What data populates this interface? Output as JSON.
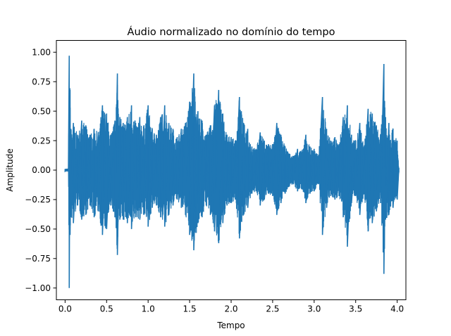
{
  "chart_data": {
    "type": "line",
    "title": "Áudio normalizado no domínio do tempo",
    "xlabel": "Tempo",
    "ylabel": "Amplitude",
    "xlim": [
      -0.105,
      4.105
    ],
    "ylim": [
      -1.1,
      1.1
    ],
    "x_ticks": [
      0.0,
      0.5,
      1.0,
      1.5,
      2.0,
      2.5,
      3.0,
      3.5,
      4.0
    ],
    "x_tick_labels": [
      "0.0",
      "0.5",
      "1.0",
      "1.5",
      "2.0",
      "2.5",
      "3.0",
      "3.5",
      "4.0"
    ],
    "y_ticks": [
      -1.0,
      -0.75,
      -0.5,
      -0.25,
      0.0,
      0.25,
      0.5,
      0.75,
      1.0
    ],
    "y_tick_labels": [
      "−1.00",
      "−0.75",
      "−0.50",
      "−0.25",
      "0.00",
      "0.25",
      "0.50",
      "0.75",
      "1.00"
    ],
    "grid": false,
    "series": [
      {
        "color": "#1f77b4",
        "envelope": {
          "x": [
            0.0,
            0.04,
            0.05,
            0.06,
            0.07,
            0.1,
            0.15,
            0.2,
            0.25,
            0.3,
            0.35,
            0.4,
            0.45,
            0.5,
            0.55,
            0.6,
            0.63,
            0.66,
            0.7,
            0.75,
            0.8,
            0.85,
            0.9,
            0.95,
            1.0,
            1.05,
            1.1,
            1.15,
            1.2,
            1.25,
            1.3,
            1.35,
            1.4,
            1.45,
            1.5,
            1.55,
            1.6,
            1.65,
            1.7,
            1.75,
            1.8,
            1.85,
            1.9,
            1.95,
            2.0,
            2.05,
            2.1,
            2.15,
            2.2,
            2.25,
            2.3,
            2.35,
            2.4,
            2.45,
            2.5,
            2.55,
            2.6,
            2.65,
            2.7,
            2.75,
            2.8,
            2.85,
            2.9,
            2.95,
            3.0,
            3.05,
            3.1,
            3.15,
            3.2,
            3.25,
            3.3,
            3.35,
            3.4,
            3.45,
            3.5,
            3.55,
            3.6,
            3.65,
            3.7,
            3.75,
            3.8,
            3.84,
            3.86,
            3.9,
            3.95,
            4.0,
            4.02
          ],
          "upper": [
            0.01,
            0.01,
            0.97,
            0.68,
            0.35,
            0.4,
            0.3,
            0.42,
            0.38,
            0.3,
            0.35,
            0.32,
            0.55,
            0.48,
            0.3,
            0.42,
            0.82,
            0.45,
            0.4,
            0.45,
            0.55,
            0.4,
            0.45,
            0.38,
            0.55,
            0.35,
            0.3,
            0.45,
            0.55,
            0.4,
            0.35,
            0.28,
            0.35,
            0.4,
            0.58,
            0.82,
            0.5,
            0.42,
            0.3,
            0.38,
            0.55,
            0.68,
            0.48,
            0.3,
            0.28,
            0.25,
            0.62,
            0.4,
            0.35,
            0.2,
            0.18,
            0.32,
            0.25,
            0.22,
            0.22,
            0.4,
            0.3,
            0.2,
            0.14,
            0.12,
            0.18,
            0.16,
            0.3,
            0.2,
            0.18,
            0.12,
            0.62,
            0.35,
            0.25,
            0.28,
            0.22,
            0.45,
            0.55,
            0.3,
            0.25,
            0.4,
            0.2,
            0.52,
            0.48,
            0.38,
            0.3,
            0.9,
            0.45,
            0.4,
            0.35,
            0.25,
            0.02
          ],
          "lower": [
            -0.01,
            -0.01,
            -1.0,
            -0.55,
            -0.4,
            -0.45,
            -0.3,
            -0.42,
            -0.38,
            -0.3,
            -0.4,
            -0.35,
            -0.55,
            -0.5,
            -0.3,
            -0.4,
            -0.72,
            -0.42,
            -0.42,
            -0.45,
            -0.5,
            -0.4,
            -0.42,
            -0.38,
            -0.48,
            -0.32,
            -0.3,
            -0.4,
            -0.48,
            -0.38,
            -0.3,
            -0.25,
            -0.32,
            -0.38,
            -0.55,
            -0.68,
            -0.45,
            -0.4,
            -0.3,
            -0.38,
            -0.52,
            -0.62,
            -0.45,
            -0.3,
            -0.28,
            -0.25,
            -0.58,
            -0.38,
            -0.32,
            -0.2,
            -0.18,
            -0.3,
            -0.25,
            -0.2,
            -0.22,
            -0.38,
            -0.28,
            -0.2,
            -0.14,
            -0.12,
            -0.18,
            -0.16,
            -0.28,
            -0.2,
            -0.18,
            -0.12,
            -0.55,
            -0.32,
            -0.22,
            -0.25,
            -0.22,
            -0.4,
            -0.65,
            -0.28,
            -0.22,
            -0.38,
            -0.2,
            -0.52,
            -0.45,
            -0.35,
            -0.28,
            -0.88,
            -0.42,
            -0.38,
            -0.32,
            -0.25,
            -0.02
          ]
        }
      }
    ]
  }
}
